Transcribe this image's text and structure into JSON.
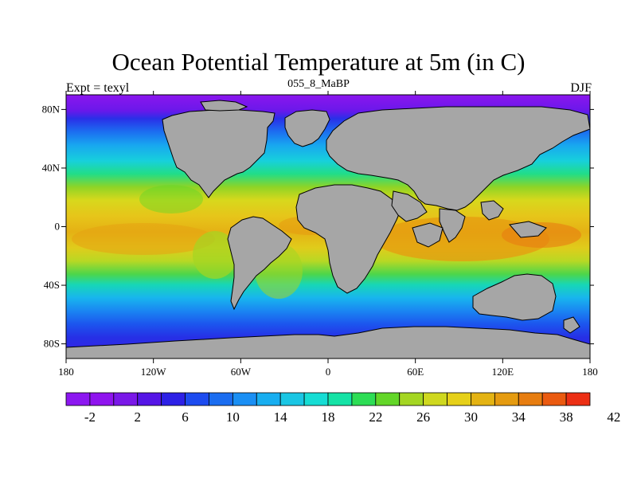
{
  "header": {
    "title": "Ocean Potential Temperature at 5m (in C)",
    "left_label": "Expt = texyl",
    "center_label": "055_8_MaBP",
    "right_label": "DJF"
  },
  "map": {
    "lon_range": [
      -180,
      180
    ],
    "lat_range": [
      -90,
      90
    ],
    "land_color": "#a6a6a6",
    "lon_ticks": [
      {
        "value": -180,
        "label": "180"
      },
      {
        "value": -120,
        "label": "120W"
      },
      {
        "value": -60,
        "label": "60W"
      },
      {
        "value": 0,
        "label": "0"
      },
      {
        "value": 60,
        "label": "60E"
      },
      {
        "value": 120,
        "label": "120E"
      },
      {
        "value": 180,
        "label": "180"
      }
    ],
    "lat_ticks": [
      {
        "value": 80,
        "label": "80N"
      },
      {
        "value": 40,
        "label": "40N"
      },
      {
        "value": 0,
        "label": "0"
      },
      {
        "value": -40,
        "label": "40S"
      },
      {
        "value": -80,
        "label": "80S"
      }
    ]
  },
  "colorbar": {
    "colors": [
      "#8c17f0",
      "#8f14ee",
      "#7a18e8",
      "#5515e6",
      "#2d21e6",
      "#1d4bef",
      "#1b6df0",
      "#1a8ff4",
      "#18aef0",
      "#1ac6e4",
      "#16ddd4",
      "#15e3a6",
      "#2ddd55",
      "#63d628",
      "#a4d622",
      "#cfd81f",
      "#e6d019",
      "#e4b313",
      "#e59b10",
      "#e77d10",
      "#ea5a10",
      "#ec2f14"
    ],
    "labels": [
      "-2",
      "2",
      "6",
      "10",
      "14",
      "18",
      "22",
      "26",
      "30",
      "34",
      "38",
      "42"
    ]
  }
}
